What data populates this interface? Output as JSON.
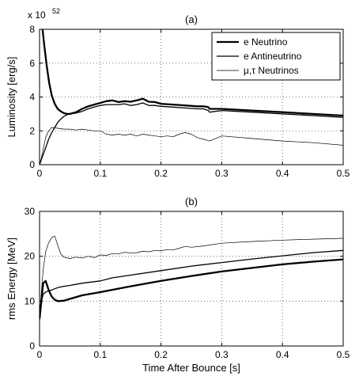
{
  "chart_data": [
    {
      "type": "line",
      "title": "(a)",
      "xlabel": "",
      "ylabel": "Luminosity [erg/s]",
      "y_multiplier": "x 10",
      "y_exponent": "52",
      "xlim": [
        0,
        0.5
      ],
      "ylim": [
        0,
        8
      ],
      "x_ticks": [
        0,
        0.1,
        0.2,
        0.3,
        0.4,
        0.5
      ],
      "x_tick_labels": [
        "0",
        "0.1",
        "0.2",
        "0.3",
        "0.4",
        "0.5"
      ],
      "y_ticks": [
        0,
        2,
        4,
        6,
        8
      ],
      "y_tick_labels": [
        "0",
        "2",
        "4",
        "6",
        "8"
      ],
      "grid": true,
      "legend_position": "top-right",
      "series": [
        {
          "name": "e Neutrino",
          "style": "thick",
          "x": [
            0.005,
            0.008,
            0.012,
            0.016,
            0.02,
            0.025,
            0.03,
            0.035,
            0.04,
            0.045,
            0.05,
            0.06,
            0.07,
            0.08,
            0.09,
            0.1,
            0.11,
            0.12,
            0.13,
            0.14,
            0.15,
            0.16,
            0.17,
            0.18,
            0.19,
            0.2,
            0.22,
            0.24,
            0.26,
            0.27,
            0.278,
            0.28,
            0.3,
            0.35,
            0.4,
            0.45,
            0.5
          ],
          "y": [
            8.0,
            7.0,
            5.8,
            4.8,
            4.1,
            3.6,
            3.3,
            3.15,
            3.05,
            3.0,
            3.0,
            3.1,
            3.3,
            3.45,
            3.55,
            3.65,
            3.75,
            3.8,
            3.7,
            3.75,
            3.72,
            3.8,
            3.9,
            3.72,
            3.7,
            3.6,
            3.55,
            3.5,
            3.45,
            3.45,
            3.4,
            3.3,
            3.3,
            3.2,
            3.1,
            3.0,
            2.9
          ]
        },
        {
          "name": "e Antineutrino",
          "style": "medium",
          "x": [
            0.0,
            0.005,
            0.01,
            0.015,
            0.02,
            0.025,
            0.03,
            0.035,
            0.04,
            0.045,
            0.05,
            0.06,
            0.07,
            0.08,
            0.09,
            0.1,
            0.11,
            0.12,
            0.13,
            0.14,
            0.15,
            0.16,
            0.17,
            0.18,
            0.19,
            0.2,
            0.22,
            0.24,
            0.26,
            0.27,
            0.278,
            0.28,
            0.3,
            0.35,
            0.4,
            0.45,
            0.5
          ],
          "y": [
            0.0,
            0.5,
            1.0,
            1.5,
            1.9,
            2.2,
            2.5,
            2.7,
            2.85,
            2.95,
            3.0,
            3.05,
            3.15,
            3.3,
            3.4,
            3.5,
            3.55,
            3.55,
            3.55,
            3.6,
            3.5,
            3.55,
            3.65,
            3.5,
            3.5,
            3.45,
            3.4,
            3.35,
            3.3,
            3.3,
            3.2,
            3.1,
            3.2,
            3.1,
            3.0,
            2.9,
            2.8
          ]
        },
        {
          "name": "μ,τ Neutrinos",
          "style": "thin",
          "x": [
            0.0,
            0.003,
            0.006,
            0.01,
            0.015,
            0.02,
            0.03,
            0.04,
            0.05,
            0.06,
            0.07,
            0.08,
            0.09,
            0.1,
            0.11,
            0.12,
            0.13,
            0.14,
            0.15,
            0.16,
            0.17,
            0.18,
            0.19,
            0.2,
            0.21,
            0.22,
            0.23,
            0.24,
            0.25,
            0.26,
            0.27,
            0.28,
            0.29,
            0.3,
            0.35,
            0.4,
            0.45,
            0.5
          ],
          "y": [
            0.0,
            0.4,
            0.9,
            1.6,
            2.0,
            2.2,
            2.15,
            2.1,
            2.1,
            2.05,
            2.1,
            2.05,
            2.0,
            2.0,
            1.8,
            1.75,
            1.8,
            1.75,
            1.8,
            1.7,
            1.8,
            1.75,
            1.7,
            1.65,
            1.7,
            1.65,
            1.8,
            1.9,
            1.8,
            1.6,
            1.5,
            1.4,
            1.55,
            1.7,
            1.55,
            1.4,
            1.3,
            1.15
          ]
        }
      ]
    },
    {
      "type": "line",
      "title": "(b)",
      "xlabel": "Time After Bounce [s]",
      "ylabel": "rms Energy [MeV]",
      "xlim": [
        0,
        0.5
      ],
      "ylim": [
        0,
        30
      ],
      "x_ticks": [
        0,
        0.1,
        0.2,
        0.3,
        0.4,
        0.5
      ],
      "x_tick_labels": [
        "0",
        "0.1",
        "0.2",
        "0.3",
        "0.4",
        "0.5"
      ],
      "y_ticks": [
        0,
        10,
        20,
        30
      ],
      "y_tick_labels": [
        "0",
        "10",
        "20",
        "30"
      ],
      "grid": true,
      "series": [
        {
          "name": "e Neutrino",
          "style": "thick",
          "x": [
            0.0,
            0.003,
            0.006,
            0.01,
            0.015,
            0.02,
            0.025,
            0.03,
            0.04,
            0.05,
            0.07,
            0.1,
            0.15,
            0.2,
            0.25,
            0.3,
            0.35,
            0.4,
            0.45,
            0.5
          ],
          "y": [
            6.0,
            10.0,
            14.0,
            14.5,
            12.5,
            11.0,
            10.3,
            10.0,
            10.1,
            10.5,
            11.3,
            12.0,
            13.3,
            14.5,
            15.6,
            16.6,
            17.4,
            18.2,
            18.8,
            19.3
          ]
        },
        {
          "name": "e Antineutrino",
          "style": "medium",
          "x": [
            0.0,
            0.003,
            0.006,
            0.01,
            0.015,
            0.02,
            0.03,
            0.04,
            0.05,
            0.07,
            0.1,
            0.12,
            0.15,
            0.2,
            0.25,
            0.3,
            0.35,
            0.4,
            0.45,
            0.5
          ],
          "y": [
            6.0,
            10.0,
            11.5,
            12.0,
            12.3,
            12.5,
            13.0,
            13.3,
            13.5,
            14.0,
            14.5,
            15.2,
            15.8,
            16.8,
            17.8,
            18.6,
            19.4,
            20.1,
            20.8,
            21.3
          ]
        },
        {
          "name": "μ,τ Neutrinos",
          "style": "thin",
          "x": [
            0.0,
            0.003,
            0.006,
            0.01,
            0.015,
            0.02,
            0.025,
            0.03,
            0.035,
            0.04,
            0.05,
            0.06,
            0.07,
            0.08,
            0.09,
            0.1,
            0.11,
            0.12,
            0.13,
            0.14,
            0.15,
            0.16,
            0.17,
            0.18,
            0.19,
            0.2,
            0.21,
            0.22,
            0.23,
            0.24,
            0.25,
            0.27,
            0.3,
            0.35,
            0.4,
            0.45,
            0.5
          ],
          "y": [
            6.0,
            12.0,
            17.0,
            21.0,
            23.0,
            24.2,
            24.5,
            22.5,
            20.5,
            19.8,
            19.5,
            19.8,
            19.6,
            20.0,
            19.7,
            20.3,
            20.2,
            20.6,
            20.5,
            20.9,
            20.7,
            20.8,
            21.1,
            21.0,
            21.3,
            21.2,
            21.5,
            21.4,
            21.8,
            22.2,
            22.0,
            22.3,
            22.9,
            23.3,
            23.6,
            23.8,
            24.0
          ]
        }
      ]
    }
  ]
}
